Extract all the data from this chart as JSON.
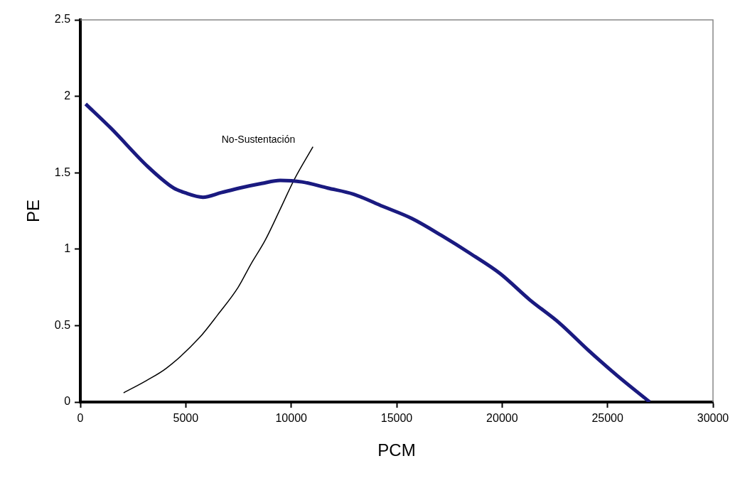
{
  "chart_data": {
    "type": "line",
    "xlabel": "PCM",
    "ylabel": "PE",
    "xlim": [
      0,
      30000
    ],
    "ylim": [
      0,
      2.5
    ],
    "xticks": [
      0,
      5000,
      10000,
      15000,
      20000,
      25000,
      30000
    ],
    "yticks": [
      0,
      0.5,
      1,
      1.5,
      2,
      2.5
    ],
    "grid": false,
    "legend": false,
    "marker": "none",
    "line_style": "solid",
    "series": [
      {
        "color": "#1a1a80",
        "x": [
          250,
          1460,
          3200,
          4420,
          4940,
          5810,
          6680,
          7550,
          8600,
          9470,
          10510,
          11730,
          12950,
          14340,
          15730,
          17120,
          18510,
          19910,
          21300,
          22690,
          24080,
          25480,
          27000
        ],
        "values": [
          1.95,
          1.79,
          1.54,
          1.4,
          1.37,
          1.34,
          1.37,
          1.4,
          1.43,
          1.45,
          1.44,
          1.4,
          1.36,
          1.28,
          1.2,
          1.09,
          0.97,
          0.84,
          0.67,
          0.52,
          0.34,
          0.17,
          0
        ]
      },
      {
        "name": "No-Sustentación",
        "color": "#000000",
        "x": [
          2050,
          3130,
          4070,
          5640,
          6510,
          7480,
          8080,
          8770,
          9470,
          10160,
          11030
        ],
        "values": [
          0.06,
          0.14,
          0.22,
          0.42,
          0.57,
          0.75,
          0.9,
          1.06,
          1.26,
          1.46,
          1.67
        ]
      }
    ]
  }
}
